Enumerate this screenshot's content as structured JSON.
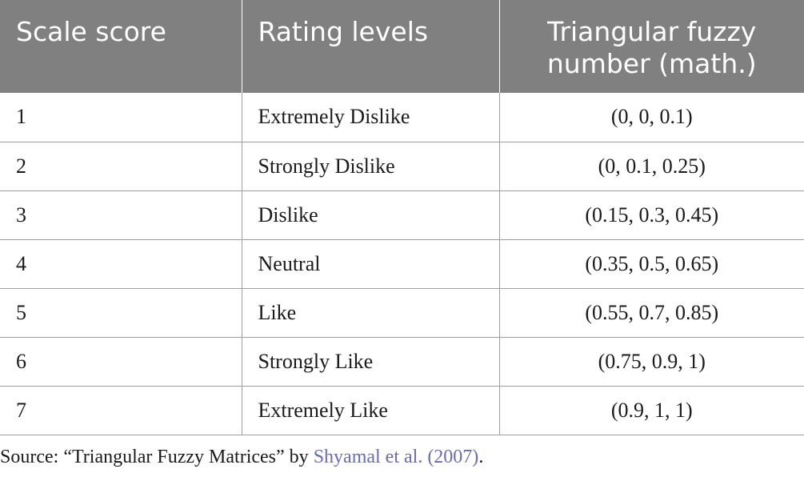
{
  "table": {
    "headers": [
      "Scale score",
      "Rating levels",
      "Triangular fuzzy number (math.)"
    ],
    "rows": [
      {
        "score": "1",
        "rating": "Extremely Dislike",
        "tfn": "(0, 0, 0.1)"
      },
      {
        "score": "2",
        "rating": "Strongly Dislike",
        "tfn": "(0, 0.1, 0.25)"
      },
      {
        "score": "3",
        "rating": "Dislike",
        "tfn": "(0.15, 0.3, 0.45)"
      },
      {
        "score": "4",
        "rating": "Neutral",
        "tfn": "(0.35, 0.5, 0.65)"
      },
      {
        "score": "5",
        "rating": "Like",
        "tfn": "(0.55, 0.7, 0.85)"
      },
      {
        "score": "6",
        "rating": "Strongly Like",
        "tfn": "(0.75, 0.9, 1)"
      },
      {
        "score": "7",
        "rating": "Extremely Like",
        "tfn": "(0.9, 1, 1)"
      }
    ]
  },
  "source": {
    "prefix": "Source: “Triangular Fuzzy Matrices” by ",
    "citation": "Shyamal et al. (2007)",
    "suffix": "."
  },
  "colors": {
    "header_bg": "#808080",
    "header_text": "#ffffff",
    "citation_link": "#6b6bb3"
  }
}
